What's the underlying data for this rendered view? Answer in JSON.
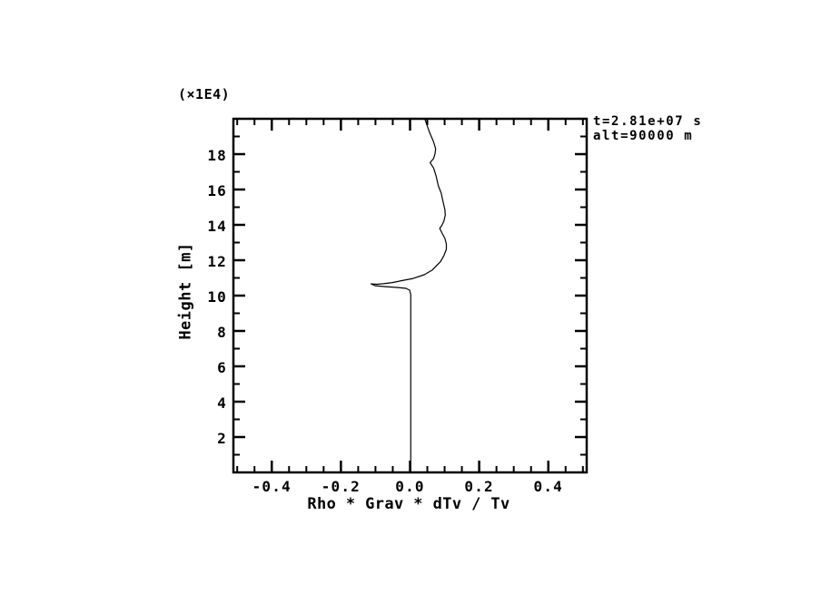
{
  "colors": {
    "background": "#ffffff",
    "foreground": "#000000"
  },
  "chart_data": {
    "type": "line",
    "title": "",
    "xlabel": "Rho * Grav * dTv / Tv",
    "ylabel": "Height [m]",
    "y_axis_multiplier": "(×1E4)",
    "annotation_lines": {
      "time": "t=2.81e+07 s",
      "altitude": "alt=90000 m"
    },
    "xlim": [
      -0.511,
      0.511
    ],
    "ylim": [
      0,
      20
    ],
    "x_major_ticks": [
      -0.4,
      -0.2,
      0.0,
      0.2,
      0.4
    ],
    "x_tick_labels": [
      "-0.4",
      "-0.2",
      "0.0",
      "0.2",
      "0.4"
    ],
    "x_minor_step": 0.05,
    "y_major_ticks": [
      2,
      4,
      6,
      8,
      10,
      12,
      14,
      16,
      18
    ],
    "y_tick_labels": [
      "2",
      "4",
      "6",
      "8",
      "10",
      "12",
      "14",
      "16",
      "18"
    ],
    "y_minor_step": 1,
    "grid": false,
    "legend": "none",
    "line_color": "#000000",
    "y_units_note": "height axis values are in m times 1E4",
    "series": [
      {
        "name": "rho-grav-dtv-over-tv-profile",
        "points": [
          [
            0.043,
            19.97
          ],
          [
            0.056,
            19.25
          ],
          [
            0.068,
            18.7
          ],
          [
            0.074,
            18.3
          ],
          [
            0.072,
            18.0
          ],
          [
            0.068,
            17.75
          ],
          [
            0.058,
            17.52
          ],
          [
            0.068,
            17.22
          ],
          [
            0.075,
            16.8
          ],
          [
            0.082,
            16.2
          ],
          [
            0.09,
            15.8
          ],
          [
            0.095,
            15.35
          ],
          [
            0.101,
            14.85
          ],
          [
            0.102,
            14.55
          ],
          [
            0.098,
            14.22
          ],
          [
            0.092,
            13.97
          ],
          [
            0.086,
            13.8
          ],
          [
            0.093,
            13.52
          ],
          [
            0.101,
            13.23
          ],
          [
            0.105,
            12.92
          ],
          [
            0.105,
            12.62
          ],
          [
            0.098,
            12.26
          ],
          [
            0.088,
            11.92
          ],
          [
            0.064,
            11.44
          ],
          [
            0.041,
            11.18
          ],
          [
            0.009,
            10.97
          ],
          [
            -0.022,
            10.85
          ],
          [
            -0.051,
            10.74
          ],
          [
            -0.077,
            10.67
          ],
          [
            -0.096,
            10.64
          ],
          [
            -0.113,
            10.66
          ],
          [
            -0.101,
            10.56
          ],
          [
            -0.072,
            10.51
          ],
          [
            -0.038,
            10.46
          ],
          [
            -0.012,
            10.41
          ],
          [
            -0.001,
            10.31
          ],
          [
            0.002,
            10.05
          ],
          [
            0.002,
            0.0
          ]
        ]
      }
    ]
  }
}
